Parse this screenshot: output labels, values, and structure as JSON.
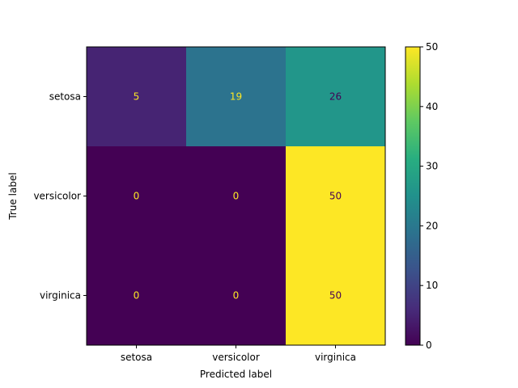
{
  "chart_data": {
    "type": "heatmap",
    "title": "",
    "xlabel": "Predicted label",
    "ylabel": "True label",
    "x_categories": [
      "setosa",
      "versicolor",
      "virginica"
    ],
    "y_categories": [
      "setosa",
      "versicolor",
      "virginica"
    ],
    "values": [
      [
        5,
        19,
        26
      ],
      [
        0,
        0,
        50
      ],
      [
        0,
        0,
        50
      ]
    ],
    "colormap": "viridis",
    "value_range": [
      0,
      50
    ],
    "colorbar_ticks": [
      0,
      10,
      20,
      30,
      40,
      50
    ],
    "grid": false,
    "text_color_light": "#fde725",
    "text_color_dark": "#440154"
  }
}
